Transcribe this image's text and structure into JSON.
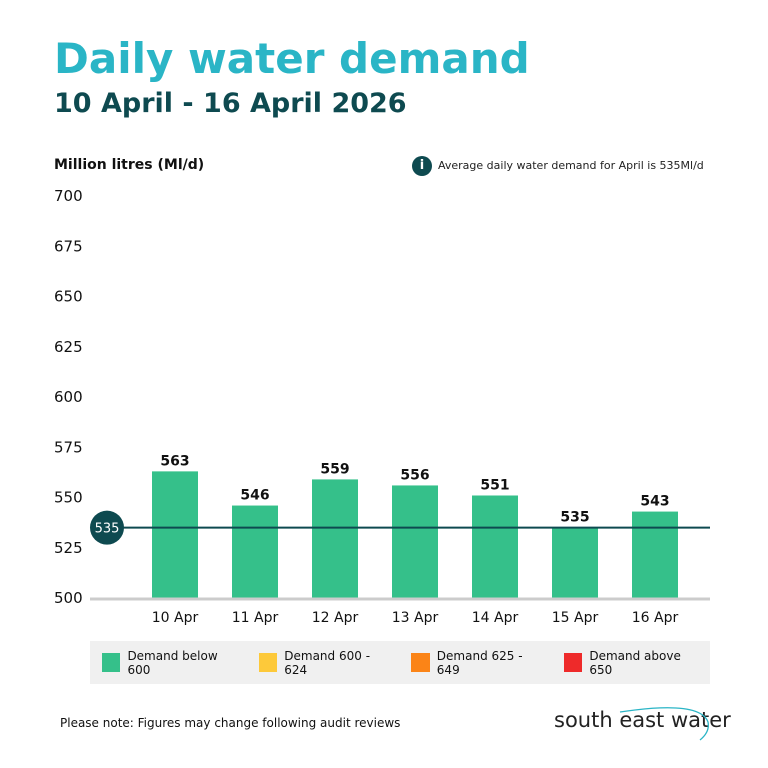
{
  "title": "Daily water demand",
  "subtitle": "10 April - 16 April 2026",
  "note": "Average daily water demand for April is 535Ml/d",
  "info_icon": "i",
  "footer": "Please note: Figures may change following audit reviews",
  "logo": "south east water",
  "colors": {
    "bar": "#35c08a",
    "avg_line": "#0e4a50",
    "axis": "#cccccc"
  },
  "legend": [
    {
      "label": "Demand below 600",
      "color": "#35c08a"
    },
    {
      "label": "Demand 600 - 624",
      "color": "#fdc93a"
    },
    {
      "label": "Demand 625 - 649",
      "color": "#fb8417"
    },
    {
      "label": "Demand above 650",
      "color": "#ee2a2a"
    }
  ],
  "chart_data": {
    "type": "bar",
    "ylabel": "Million litres (Ml/d)",
    "ylim": [
      500,
      700
    ],
    "yticks": [
      500,
      525,
      550,
      575,
      600,
      625,
      650,
      675,
      700
    ],
    "categories": [
      "10 Apr",
      "11 Apr",
      "12 Apr",
      "13 Apr",
      "14 Apr",
      "15 Apr",
      "16 Apr"
    ],
    "values": [
      563,
      546,
      559,
      556,
      551,
      535,
      543
    ],
    "average": 535,
    "grid": false
  }
}
